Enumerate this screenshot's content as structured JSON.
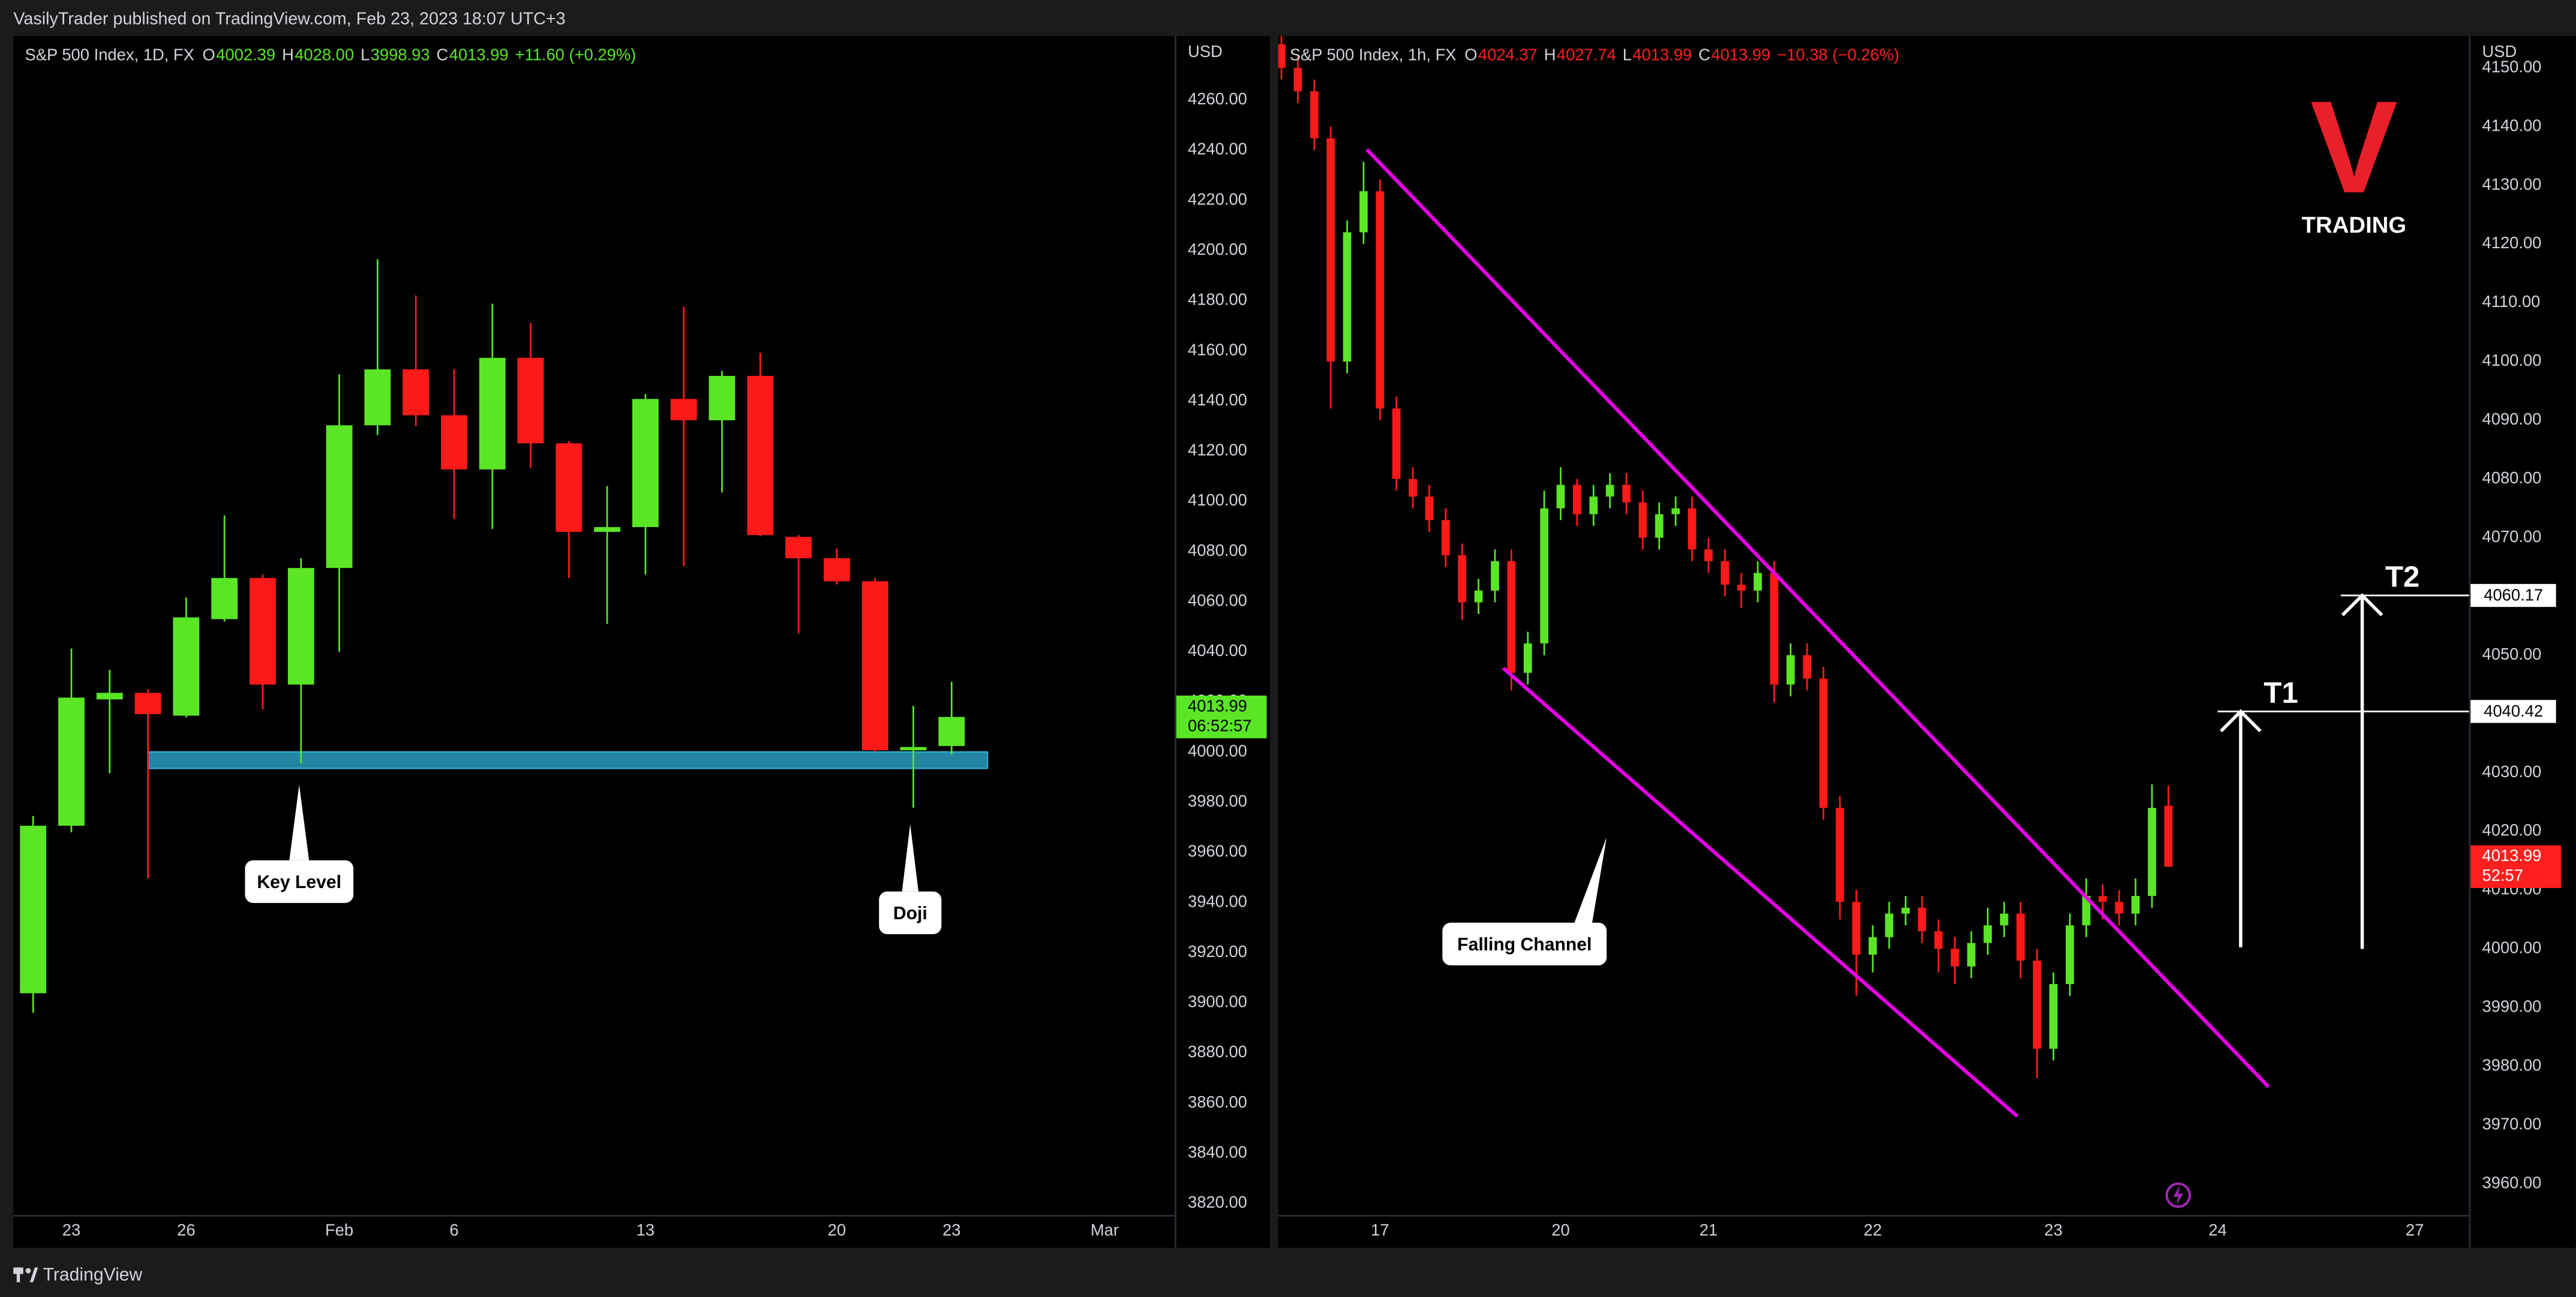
{
  "header": {
    "text": "VasilyTrader published on TradingView.com, Feb 23, 2023 18:07 UTC+3"
  },
  "footer": {
    "brand": "TradingView"
  },
  "logo": {
    "mark": "V",
    "text": "TRADING"
  },
  "chart_data": [
    {
      "type": "candlestick",
      "symbol": "S&P 500 Index, 1D, FX",
      "ohlc_text": [
        {
          "label": "O",
          "value": "4002.39"
        },
        {
          "label": "H",
          "value": "4028.00"
        },
        {
          "label": "L",
          "value": "3998.93"
        },
        {
          "label": "C",
          "value": "4013.99"
        }
      ],
      "change": "+11.60 (+0.29%)",
      "legend_color": "#5be625",
      "currency": "USD",
      "up_color": "#5be625",
      "down_color": "#ff1a1a",
      "grid": false,
      "categories": [
        null,
        "23",
        null,
        null,
        "26",
        null,
        null,
        null,
        "Feb",
        null,
        null,
        "6",
        null,
        null,
        null,
        null,
        "13",
        null,
        null,
        null,
        null,
        "20",
        null,
        null,
        "23",
        null,
        null,
        null,
        "Mar"
      ],
      "open": [
        3903.8,
        3970.6,
        4021.0,
        4023.6,
        4014.5,
        4053.0,
        4069.4,
        4026.9,
        4073.4,
        4130.3,
        4152.6,
        4134.3,
        4112.7,
        4157.2,
        4123.1,
        4087.8,
        4089.7,
        4140.8,
        4132.3,
        4150.0,
        4085.8,
        4077.3,
        4068.1,
        4000.7,
        4002.39,
        null,
        null,
        null,
        null
      ],
      "high": [
        3974.5,
        4041.3,
        4032.8,
        4025.0,
        4061.6,
        4094.3,
        4070.8,
        4077.3,
        4150.6,
        4196.5,
        4182.1,
        4152.6,
        4178.8,
        4171.0,
        4124.0,
        4106.1,
        4142.8,
        4177.5,
        4152.0,
        4159.2,
        4086.5,
        4081.2,
        4069.4,
        4018.4,
        4028.0,
        null,
        null,
        null,
        null
      ],
      "low": [
        3896.0,
        3968.0,
        3991.5,
        3949.6,
        4013.8,
        4052.0,
        4017.0,
        3995.5,
        4040.0,
        4126.4,
        4130.0,
        4093.0,
        4089.0,
        4113.3,
        4069.4,
        4051.1,
        4070.8,
        4074.0,
        4103.5,
        4086.0,
        4047.2,
        4066.8,
        4000.0,
        3977.8,
        3998.93,
        null,
        null,
        null,
        null
      ],
      "close": [
        3970.6,
        4021.7,
        4023.6,
        4015.1,
        4053.7,
        4069.4,
        4026.9,
        4073.4,
        4130.3,
        4152.6,
        4134.3,
        4112.7,
        4157.2,
        4123.1,
        4087.8,
        4089.7,
        4140.8,
        4132.3,
        4150.0,
        4086.5,
        4077.3,
        4068.1,
        4000.7,
        4002.0,
        4013.99,
        null,
        null,
        null,
        null
      ],
      "ylim": [
        3815.4,
        4285.5
      ],
      "yticks": [
        {
          "value": 3820,
          "label": "3820.00"
        },
        {
          "value": 3840,
          "label": "3840.00"
        },
        {
          "value": 3860,
          "label": "3860.00"
        },
        {
          "value": 3880,
          "label": "3880.00"
        },
        {
          "value": 3900,
          "label": "3900.00"
        },
        {
          "value": 3920,
          "label": "3920.00"
        },
        {
          "value": 3940,
          "label": "3940.00"
        },
        {
          "value": 3960,
          "label": "3960.00"
        },
        {
          "value": 3980,
          "label": "3980.00"
        },
        {
          "value": 4000,
          "label": "4000.00"
        },
        {
          "value": 4020,
          "label": "4020.00"
        },
        {
          "value": 4040,
          "label": "4040.00"
        },
        {
          "value": 4060,
          "label": "4060.00"
        },
        {
          "value": 4080,
          "label": "4080.00"
        },
        {
          "value": 4100,
          "label": "4100.00"
        },
        {
          "value": 4120,
          "label": "4120.00"
        },
        {
          "value": 4140,
          "label": "4140.00"
        },
        {
          "value": 4160,
          "label": "4160.00"
        },
        {
          "value": 4180,
          "label": "4180.00"
        },
        {
          "value": 4200,
          "label": "4200.00"
        },
        {
          "value": 4220,
          "label": "4220.00"
        },
        {
          "value": 4240,
          "label": "4240.00"
        },
        {
          "value": 4260,
          "label": "4260.00"
        }
      ],
      "last_price": {
        "value_label": "4013.99",
        "countdown": "06:52:57",
        "color": "#5be625"
      },
      "zone": {
        "top": 4000,
        "bottom": 3993.5,
        "color": "#2aa7c9"
      },
      "annotations": [
        {
          "text": "Key Level"
        },
        {
          "text": "Doji"
        }
      ]
    },
    {
      "type": "candlestick",
      "symbol": "S&P 500 Index, 1h, FX",
      "ohlc_text": [
        {
          "label": "O",
          "value": "4024.37"
        },
        {
          "label": "H",
          "value": "4027.74"
        },
        {
          "label": "L",
          "value": "4013.99"
        },
        {
          "label": "C",
          "value": "4013.99"
        }
      ],
      "change": "−10.38 (−0.26%)",
      "legend_color": "#ff1f1f",
      "currency": "USD",
      "up_color": "#5be625",
      "down_color": "#ff1a1a",
      "grid": false,
      "categories": [
        null,
        null,
        null,
        null,
        null,
        null,
        "17",
        null,
        null,
        null,
        null,
        null,
        null,
        null,
        null,
        null,
        null,
        "20",
        null,
        null,
        null,
        null,
        null,
        null,
        null,
        null,
        "21",
        null,
        null,
        null,
        null,
        null,
        null,
        null,
        null,
        null,
        "22",
        null,
        null,
        null,
        null,
        null,
        null,
        null,
        null,
        null,
        null,
        "23",
        null,
        null,
        null,
        null,
        null,
        null,
        null,
        null,
        null,
        "24",
        null,
        null,
        null,
        null,
        null,
        null,
        null,
        null,
        null,
        null,
        null,
        "27"
      ],
      "open": [
        4154,
        4150,
        4146,
        4138,
        4100,
        4122,
        4129,
        4092,
        4080,
        4077,
        4073,
        4067,
        4059,
        4061,
        4066,
        4047,
        4052,
        4075,
        4079,
        4074,
        4077,
        4079,
        4076,
        4070,
        4074,
        4075,
        4068,
        4066,
        4062,
        4061,
        4064,
        4045,
        4050,
        4046,
        4024,
        4008,
        3999,
        4002,
        4006,
        4007,
        4003,
        4000,
        3997,
        4001,
        4004,
        4006,
        3998,
        3983,
        3994,
        4004,
        4009,
        4008,
        4006,
        4009,
        4024.37,
        null,
        null,
        null,
        null,
        null,
        null,
        null,
        null,
        null,
        null,
        null,
        null,
        null,
        null,
        null
      ],
      "high": [
        4156,
        4152,
        4148,
        4140,
        4124,
        4134,
        4131,
        4094,
        4082,
        4079,
        4075,
        4069,
        4063,
        4068,
        4068,
        4054,
        4078,
        4082,
        4080,
        4079,
        4081,
        4081,
        4078,
        4076,
        4077,
        4077,
        4070,
        4068,
        4064,
        4066,
        4066,
        4052,
        4052,
        4048,
        4026,
        4010,
        4004,
        4008,
        4009,
        4009,
        4005,
        4002,
        4003,
        4007,
        4008,
        4008,
        4000,
        3996,
        4006,
        4012,
        4011,
        4010,
        4012,
        4028,
        4027.74,
        null,
        null,
        null,
        null,
        null,
        null,
        null,
        null,
        null,
        null,
        null,
        null,
        null,
        null,
        null
      ],
      "low": [
        4148,
        4144,
        4136,
        4092,
        4098,
        4120,
        4090,
        4078,
        4075,
        4071,
        4065,
        4056,
        4057,
        4059,
        4044,
        4045,
        4050,
        4073,
        4072,
        4072,
        4075,
        4074,
        4068,
        4068,
        4072,
        4066,
        4064,
        4060,
        4058,
        4059,
        4042,
        4043,
        4044,
        4022,
        4005,
        3992,
        3996,
        4000,
        4004,
        4001,
        3996,
        3994,
        3995,
        3999,
        4002,
        3995,
        3978,
        3981,
        3992,
        4002,
        4005,
        4004,
        4004,
        4007,
        4013.99,
        null,
        null,
        null,
        null,
        null,
        null,
        null,
        null,
        null,
        null,
        null,
        null,
        null,
        null,
        null
      ],
      "close": [
        4150,
        4146,
        4138,
        4100,
        4122,
        4129,
        4092,
        4080,
        4077,
        4073,
        4067,
        4059,
        4061,
        4066,
        4047,
        4052,
        4075,
        4079,
        4074,
        4077,
        4079,
        4076,
        4070,
        4074,
        4075,
        4068,
        4066,
        4062,
        4061,
        4064,
        4045,
        4050,
        4046,
        4024,
        4008,
        3999,
        4002,
        4006,
        4007,
        4003,
        4000,
        3997,
        4001,
        4004,
        4006,
        3998,
        3983,
        3994,
        4004,
        4009,
        4008,
        4006,
        4009,
        4024,
        4013.99,
        null,
        null,
        null,
        null,
        null,
        null,
        null,
        null,
        null,
        null,
        null,
        null,
        null,
        null,
        null
      ],
      "ylim": [
        3954.7,
        4155.4
      ],
      "yticks": [
        {
          "value": 3960,
          "label": "3960.00"
        },
        {
          "value": 3970,
          "label": "3970.00"
        },
        {
          "value": 3980,
          "label": "3980.00"
        },
        {
          "value": 3990,
          "label": "3990.00"
        },
        {
          "value": 4000,
          "label": "4000.00"
        },
        {
          "value": 4010,
          "label": "4010.00"
        },
        {
          "value": 4020,
          "label": "4020.00"
        },
        {
          "value": 4030,
          "label": "4030.00"
        },
        {
          "value": 4040,
          "label": "4040.00"
        },
        {
          "value": 4050,
          "label": "4050.00"
        },
        {
          "value": 4060,
          "label": "4060.00"
        },
        {
          "value": 4070,
          "label": "4070.00"
        },
        {
          "value": 4080,
          "label": "4080.00"
        },
        {
          "value": 4090,
          "label": "4090.00"
        },
        {
          "value": 4100,
          "label": "4100.00"
        },
        {
          "value": 4110,
          "label": "4110.00"
        },
        {
          "value": 4120,
          "label": "4120.00"
        },
        {
          "value": 4130,
          "label": "4130.00"
        },
        {
          "value": 4140,
          "label": "4140.00"
        },
        {
          "value": 4150,
          "label": "4150.00"
        }
      ],
      "last_price": {
        "value_label": "4013.99",
        "countdown": "52:57",
        "color": "#ff1f1f"
      },
      "channel": {
        "color": "#e600e6",
        "upper": [
          4136.1,
          3976.5
        ],
        "lower": [
          4047.8,
          3971.5
        ]
      },
      "annotations": [
        {
          "text": "Falling Channel"
        }
      ],
      "targets": [
        {
          "name": "T1",
          "value": 4040.42,
          "value_label": "4040.42"
        },
        {
          "name": "T2",
          "value": 4060.17,
          "value_label": "4060.17"
        }
      ]
    }
  ]
}
